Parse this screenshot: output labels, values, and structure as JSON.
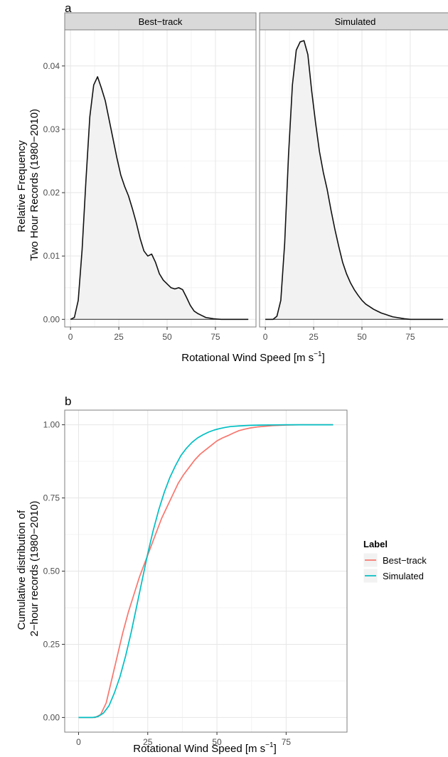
{
  "figure": {
    "panel_a_tag": "a",
    "panel_b_tag": "b",
    "a_ylabel_lines": [
      "Relative Frequency",
      "Two Hour Records (1980−2010)"
    ],
    "b_ylabel_lines": [
      "Cumulative distribution of",
      "2−hour records (1980−2010)"
    ],
    "xlabel_main": "Rotational Wind Speed [m s",
    "xlabel_sup": "−1",
    "xlabel_end": "]"
  },
  "chart_data": [
    {
      "type": "area",
      "panel": "a",
      "facets": [
        "Best−track",
        "Simulated"
      ],
      "xlabel": "Rotational Wind Speed [m s⁻¹]",
      "ylabel": "Relative Frequency Two Hour Records (1980−2010)",
      "xlim": [
        -3,
        96
      ],
      "ylim": [
        -0.0012,
        0.0457
      ],
      "x_ticks": [
        0,
        25,
        50,
        75
      ],
      "y_ticks": [
        0.0,
        0.01,
        0.02,
        0.03,
        0.04
      ],
      "y_tick_labels": [
        "0.00",
        "0.01",
        "0.02",
        "0.03",
        "0.04"
      ],
      "grid": true,
      "series": [
        {
          "name": "Best−track",
          "x": [
            0,
            2,
            4,
            6,
            8,
            10,
            12,
            14,
            16,
            18,
            20,
            22,
            24,
            26,
            28,
            30,
            32,
            34,
            36,
            38,
            40,
            42,
            44,
            46,
            48,
            50,
            52,
            54,
            56,
            58,
            60,
            62,
            64,
            66,
            68,
            70,
            72,
            74,
            76,
            78,
            80,
            92
          ],
          "y": [
            0.0,
            0.0003,
            0.003,
            0.011,
            0.022,
            0.032,
            0.037,
            0.0383,
            0.0365,
            0.0345,
            0.0315,
            0.0285,
            0.0255,
            0.0228,
            0.021,
            0.0195,
            0.0175,
            0.0153,
            0.0128,
            0.0108,
            0.01,
            0.0103,
            0.009,
            0.0072,
            0.0062,
            0.0056,
            0.005,
            0.0048,
            0.005,
            0.0047,
            0.0035,
            0.0022,
            0.0013,
            0.0009,
            0.0006,
            0.0003,
            0.0002,
            0.0001,
            5e-05,
            0.0,
            0.0,
            0.0
          ]
        },
        {
          "name": "Simulated",
          "x": [
            0,
            4,
            6,
            8,
            10,
            12,
            14,
            16,
            18,
            20,
            22,
            24,
            26,
            28,
            30,
            32,
            34,
            36,
            38,
            40,
            42,
            44,
            46,
            48,
            50,
            52,
            54,
            56,
            58,
            60,
            62,
            64,
            66,
            68,
            70,
            72,
            75,
            80,
            92
          ],
          "y": [
            0.0,
            0.0,
            0.0005,
            0.003,
            0.012,
            0.026,
            0.037,
            0.0425,
            0.0438,
            0.044,
            0.0418,
            0.036,
            0.031,
            0.0265,
            0.0232,
            0.0205,
            0.0172,
            0.0142,
            0.0115,
            0.009,
            0.0072,
            0.0058,
            0.0047,
            0.0038,
            0.003,
            0.0024,
            0.002,
            0.0016,
            0.0013,
            0.001,
            0.0008,
            0.0006,
            0.0004,
            0.0003,
            0.0002,
            0.0001,
            0.0,
            0.0,
            0.0
          ]
        }
      ]
    },
    {
      "type": "line",
      "panel": "b",
      "xlabel": "Rotational Wind Speed [m s⁻¹]",
      "ylabel": "Cumulative distribution of 2−hour records (1980−2010)",
      "xlim": [
        -5,
        97
      ],
      "ylim": [
        -0.05,
        1.05
      ],
      "x_ticks": [
        0,
        25,
        50,
        75
      ],
      "y_ticks": [
        0.0,
        0.25,
        0.5,
        0.75,
        1.0
      ],
      "y_tick_labels": [
        "0.00",
        "0.25",
        "0.50",
        "0.75",
        "1.00"
      ],
      "grid": true,
      "legend": {
        "title": "Label",
        "position": "right"
      },
      "series": [
        {
          "name": "Best−track",
          "color": "#F8766D",
          "x": [
            0,
            6,
            8,
            10,
            12,
            14,
            16,
            18,
            20,
            22,
            24,
            26,
            28,
            30,
            32,
            34,
            36,
            38,
            40,
            42,
            44,
            46,
            48,
            50,
            52,
            54,
            56,
            58,
            60,
            62,
            65,
            70,
            75,
            80,
            92
          ],
          "y": [
            0.0,
            0.0,
            0.01,
            0.05,
            0.13,
            0.21,
            0.29,
            0.36,
            0.42,
            0.48,
            0.53,
            0.58,
            0.63,
            0.68,
            0.72,
            0.76,
            0.8,
            0.83,
            0.855,
            0.88,
            0.9,
            0.915,
            0.93,
            0.945,
            0.955,
            0.963,
            0.972,
            0.98,
            0.985,
            0.989,
            0.993,
            0.997,
            0.999,
            1.0,
            1.0
          ]
        },
        {
          "name": "Simulated",
          "color": "#00BFC4",
          "x": [
            0,
            5,
            7,
            9,
            11,
            13,
            15,
            17,
            19,
            21,
            23,
            25,
            27,
            29,
            31,
            33,
            35,
            37,
            39,
            41,
            43,
            45,
            47,
            49,
            51,
            53,
            55,
            58,
            62,
            66,
            70,
            75,
            80,
            92
          ],
          "y": [
            0.0,
            0.0,
            0.003,
            0.015,
            0.04,
            0.085,
            0.14,
            0.21,
            0.29,
            0.38,
            0.47,
            0.56,
            0.64,
            0.71,
            0.77,
            0.82,
            0.86,
            0.895,
            0.92,
            0.94,
            0.955,
            0.966,
            0.975,
            0.982,
            0.987,
            0.991,
            0.994,
            0.996,
            0.998,
            0.999,
            0.9995,
            1.0,
            1.0,
            1.0
          ]
        }
      ]
    }
  ]
}
